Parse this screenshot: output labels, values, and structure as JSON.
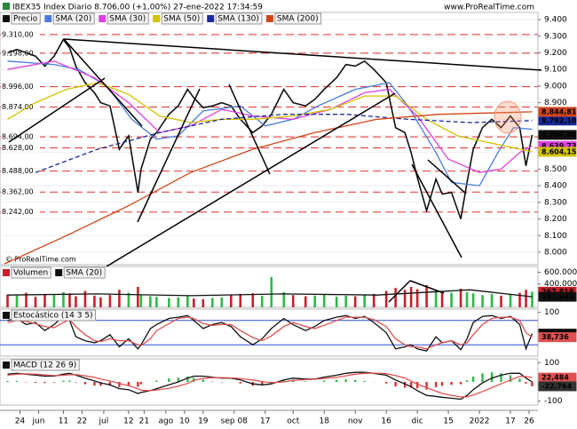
{
  "chart_data": {
    "type": "stock",
    "header": "IBEX35 Index Diario 8.706,00 (+1,00%) 27-ene-2022 17:34:59",
    "site": "www.ProRealTime.com",
    "watermark": "© ProRealTime.com",
    "x": [
      1,
      4,
      7,
      10,
      13,
      16,
      19,
      21,
      23,
      26,
      29,
      31,
      34,
      37,
      40,
      43,
      44,
      47,
      49,
      53,
      56,
      59,
      61,
      64,
      67,
      70,
      73,
      76,
      80,
      83,
      86,
      90,
      93,
      97,
      100,
      103,
      107,
      110,
      113,
      116,
      119,
      123,
      126,
      129,
      131,
      133,
      136,
      139,
      141,
      144,
      147,
      149,
      151,
      154,
      157,
      160,
      163,
      166,
      168,
      170
    ],
    "xlim": [
      0,
      171
    ],
    "xticks": [
      {
        "value": 5,
        "label": "24"
      },
      {
        "value": 11,
        "label": "jun"
      },
      {
        "value": 19,
        "label": "11"
      },
      {
        "value": 25,
        "label": "22"
      },
      {
        "value": 32,
        "label": "jul"
      },
      {
        "value": 40,
        "label": "12"
      },
      {
        "value": 45,
        "label": "21"
      },
      {
        "value": 52,
        "label": "ago"
      },
      {
        "value": 58,
        "label": "10"
      },
      {
        "value": 64,
        "label": "19"
      },
      {
        "value": 74,
        "label": "sep 08"
      },
      {
        "value": 84,
        "label": "17"
      },
      {
        "value": 93,
        "label": "oct"
      },
      {
        "value": 103,
        "label": "18"
      },
      {
        "value": 113,
        "label": "nov"
      },
      {
        "value": 123,
        "label": "16"
      },
      {
        "value": 133,
        "label": "dic"
      },
      {
        "value": 143,
        "label": "15"
      },
      {
        "value": 153,
        "label": "2022"
      },
      {
        "value": 163,
        "label": "17"
      },
      {
        "value": 169,
        "label": "26"
      }
    ],
    "panels": [
      {
        "type": "line",
        "ylim": [
          7925,
          9443
        ],
        "yticks": [
          {
            "value": 8000,
            "label": "8.000"
          },
          {
            "value": 8100,
            "label": "8.100"
          },
          {
            "value": 8200,
            "label": "8.200"
          },
          {
            "value": 8300,
            "label": "8.300"
          },
          {
            "value": 8400,
            "label": "8.400"
          },
          {
            "value": 8500,
            "label": "8.500"
          },
          {
            "value": 8600,
            "label": "8.600"
          },
          {
            "value": 8700,
            "label": "8.700"
          },
          {
            "value": 8800,
            "label": "8.800"
          },
          {
            "value": 8900,
            "label": "8.900"
          },
          {
            "value": 9000,
            "label": "9.000"
          },
          {
            "value": 9100,
            "label": "9.100"
          },
          {
            "value": 9200,
            "label": "9.200"
          },
          {
            "value": 9300,
            "label": "9.300"
          },
          {
            "value": 9400,
            "label": "9.400"
          }
        ],
        "levels": [
          {
            "value": 9310,
            "label": "9.310,00"
          },
          {
            "value": 9198,
            "label": "9.198,00"
          },
          {
            "value": 8996,
            "label": "8.996,00"
          },
          {
            "value": 8874,
            "label": "8.874,00"
          },
          {
            "value": 8694,
            "label": "8.694,00"
          },
          {
            "value": 8628,
            "label": "8.628,00"
          },
          {
            "value": 8488,
            "label": "8.488,00"
          },
          {
            "value": 8362,
            "label": "8.362,00"
          },
          {
            "value": 8242,
            "label": "8.242,00"
          }
        ],
        "series": [
          {
            "name": "Precio",
            "color": "#111111",
            "values": [
              9200,
              9220,
              9200,
              9180,
              9120,
              9180,
              9280,
              9230,
              9120,
              9020,
              8960,
              8900,
              8880,
              8620,
              8700,
              8360,
              8500,
              8680,
              8720,
              8830,
              8880,
              8980,
              8930,
              8870,
              8880,
              8900,
              8880,
              8800,
              8720,
              8760,
              8830,
              8980,
              8900,
              8880,
              8920,
              8980,
              9050,
              9130,
              9120,
              9150,
              9100,
              9020,
              8750,
              8720,
              8600,
              8450,
              8250,
              8440,
              8350,
              8360,
              8200,
              8420,
              8620,
              8750,
              8800,
              8750,
              8820,
              8750,
              8520,
              8706
            ],
            "last_label": "8.706,00"
          },
          {
            "name": "SMA (20)",
            "color": "#4a7bdc",
            "x": [
              1,
              16,
              24,
              33,
              41,
              49,
              56,
              64,
              76,
              84,
              93,
              101,
              113,
              124,
              130,
              139,
              144,
              153,
              159,
              164,
              170
            ],
            "values": [
              9150,
              9130,
              9100,
              9000,
              8800,
              8680,
              8700,
              8850,
              8880,
              8760,
              8800,
              8880,
              8980,
              9020,
              8880,
              8600,
              8420,
              8400,
              8600,
              8750,
              8740
            ]
          },
          {
            "name": "SMA (30)",
            "color": "#e040e0",
            "x": [
              1,
              16,
              29,
              40,
              50,
              60,
              70,
              80,
              93,
              105,
              116,
              124,
              133,
              143,
              153,
              160,
              166,
              170
            ],
            "values": [
              9100,
              9150,
              9050,
              8900,
              8720,
              8760,
              8860,
              8820,
              8800,
              8860,
              8960,
              8980,
              8820,
              8560,
              8480,
              8500,
              8600,
              8639.73
            ],
            "last_label": "8.639,73"
          },
          {
            "name": "SMA (50)",
            "color": "#d2c200",
            "x": [
              1,
              10,
              20,
              30,
              40,
              50,
              60,
              70,
              80,
              93,
              105,
              116,
              126,
              136,
              146,
              156,
              166,
              170
            ],
            "values": [
              8800,
              8900,
              8980,
              9020,
              8950,
              8820,
              8780,
              8800,
              8800,
              8820,
              8860,
              8940,
              8940,
              8800,
              8700,
              8660,
              8620,
              8604.15
            ],
            "last_label": "8.604,15"
          },
          {
            "name": "SMA (130)",
            "color": "#1b2b9c",
            "dash": true,
            "x": [
              10,
              30,
              50,
              70,
              90,
              110,
              130,
              150,
              170
            ],
            "values": [
              8480,
              8620,
              8720,
              8800,
              8830,
              8830,
              8800,
              8780,
              8792.1
            ],
            "last_label": "8.792,10"
          },
          {
            "name": "SMA (200)",
            "color": "#d2451a",
            "x": [
              0,
              20,
              40,
              60,
              80,
              100,
              120,
              140,
              160,
              170
            ],
            "values": [
              7930,
              8100,
              8280,
              8480,
              8620,
              8720,
              8800,
              8830,
              8840,
              8844.81
            ],
            "last_label": "8.844,81"
          }
        ]
      },
      {
        "type": "bar",
        "ylim": [
          0,
          700000
        ],
        "yticks": [
          {
            "value": 600000,
            "label": "600.000"
          },
          {
            "value": 400000,
            "label": "400.000"
          }
        ],
        "series": [
          {
            "name": "Volumen",
            "color": "#c8202a",
            "values": [
              220000,
              200000,
              250000,
              180000,
              230000,
              210000,
              260000,
              240000,
              190000,
              280000,
              200000,
              170000,
              210000,
              300000,
              250000,
              350000,
              220000,
              190000,
              180000,
              160000,
              170000,
              190000,
              150000,
              140000,
              160000,
              170000,
              210000,
              230000,
              240000,
              200000,
              520000,
              260000,
              210000,
              190000,
              200000,
              220000,
              180000,
              200000,
              190000,
              210000,
              230000,
              280000,
              330000,
              300000,
              350000,
              310000,
              380000,
              290000,
              270000,
              250000,
              320000,
              260000,
              240000,
              210000,
              230000,
              200000,
              220000,
              250000,
              300000,
              267818
            ],
            "last_label": "267.818"
          },
          {
            "name": "SMA (20)",
            "color": "#111111",
            "x": [
              1,
              30,
              60,
              90,
              120,
              150,
              170
            ],
            "values": [
              210000,
              230000,
              200000,
              230000,
              210000,
              300000,
              181043
            ],
            "last_label": "181.043"
          }
        ]
      },
      {
        "type": "line",
        "ylim": [
          -8,
          108
        ],
        "yticks": [
          100
        ],
        "levels": [
          80,
          20
        ],
        "series": [
          {
            "name": "Estocástico (14 3 5)",
            "color": "#111111",
            "values": [
              80,
              85,
              70,
              75,
              55,
              70,
              90,
              80,
              40,
              30,
              25,
              30,
              45,
              15,
              35,
              10,
              20,
              60,
              70,
              85,
              88,
              92,
              80,
              60,
              70,
              75,
              65,
              40,
              20,
              35,
              60,
              85,
              70,
              55,
              65,
              80,
              88,
              92,
              85,
              90,
              75,
              50,
              10,
              15,
              20,
              10,
              5,
              40,
              25,
              30,
              8,
              35,
              75,
              90,
              92,
              85,
              90,
              70,
              10,
              47.605
            ],
            "last_label": "47,605"
          },
          {
            "color": "#e05050",
            "values": [
              75,
              80,
              78,
              72,
              65,
              62,
              75,
              82,
              65,
              45,
              30,
              28,
              35,
              30,
              30,
              20,
              18,
              35,
              55,
              72,
              85,
              88,
              85,
              72,
              68,
              70,
              70,
              55,
              38,
              30,
              42,
              65,
              75,
              65,
              60,
              68,
              80,
              88,
              88,
              88,
              82,
              65,
              35,
              20,
              15,
              15,
              10,
              20,
              25,
              30,
              20,
              25,
              45,
              70,
              85,
              88,
              88,
              80,
              50,
              38.736
            ],
            "last_label": "38,736"
          }
        ]
      },
      {
        "type": "macd",
        "ylim": [
          -120,
          120
        ],
        "yticks": [
          100,
          -100
        ],
        "series": [
          {
            "name": "MACD (12 26 9)",
            "color": "#111111",
            "values": [
              40,
              45,
              40,
              35,
              30,
              30,
              40,
              45,
              35,
              20,
              5,
              -5,
              -15,
              -35,
              -40,
              -60,
              -55,
              -45,
              -35,
              -15,
              0,
              20,
              30,
              30,
              25,
              20,
              20,
              10,
              -10,
              -15,
              -10,
              10,
              20,
              15,
              15,
              25,
              35,
              45,
              50,
              50,
              45,
              35,
              10,
              -10,
              -25,
              -45,
              -70,
              -75,
              -80,
              -85,
              -90,
              -70,
              -40,
              -5,
              20,
              35,
              45,
              45,
              20,
              0
            ]
          },
          {
            "color": "#e05050",
            "values": [
              35,
              40,
              42,
              40,
              36,
              33,
              34,
              38,
              38,
              32,
              24,
              15,
              5,
              -8,
              -20,
              -35,
              -43,
              -45,
              -42,
              -33,
              -22,
              -8,
              8,
              18,
              22,
              22,
              21,
              18,
              10,
              2,
              -4,
              0,
              8,
              12,
              14,
              18,
              24,
              32,
              40,
              45,
              46,
              43,
              33,
              20,
              5,
              -12,
              -30,
              -48,
              -60,
              -70,
              -78,
              -78,
              -68,
              -50,
              -30,
              -10,
              10,
              28,
              28,
              22.484
            ],
            "last_label": "22,484"
          }
        ],
        "histogram": {
          "color": "#2fb84a",
          "negative_color": "#d83030",
          "values": [
            5,
            5,
            -2,
            -5,
            -6,
            -3,
            6,
            7,
            -3,
            -12,
            -19,
            -20,
            -20,
            -27,
            -20,
            -25,
            -12,
            0,
            7,
            18,
            22,
            28,
            22,
            12,
            3,
            -2,
            -1,
            -8,
            -20,
            -17,
            -6,
            10,
            12,
            3,
            1,
            7,
            11,
            13,
            10,
            5,
            -1,
            -8,
            -23,
            -30,
            -30,
            -33,
            -40,
            -27,
            -20,
            -15,
            -12,
            8,
            28,
            45,
            50,
            45,
            35,
            17,
            -8,
            -22.764
          ],
          "last_label": "-22,764"
        }
      }
    ]
  }
}
